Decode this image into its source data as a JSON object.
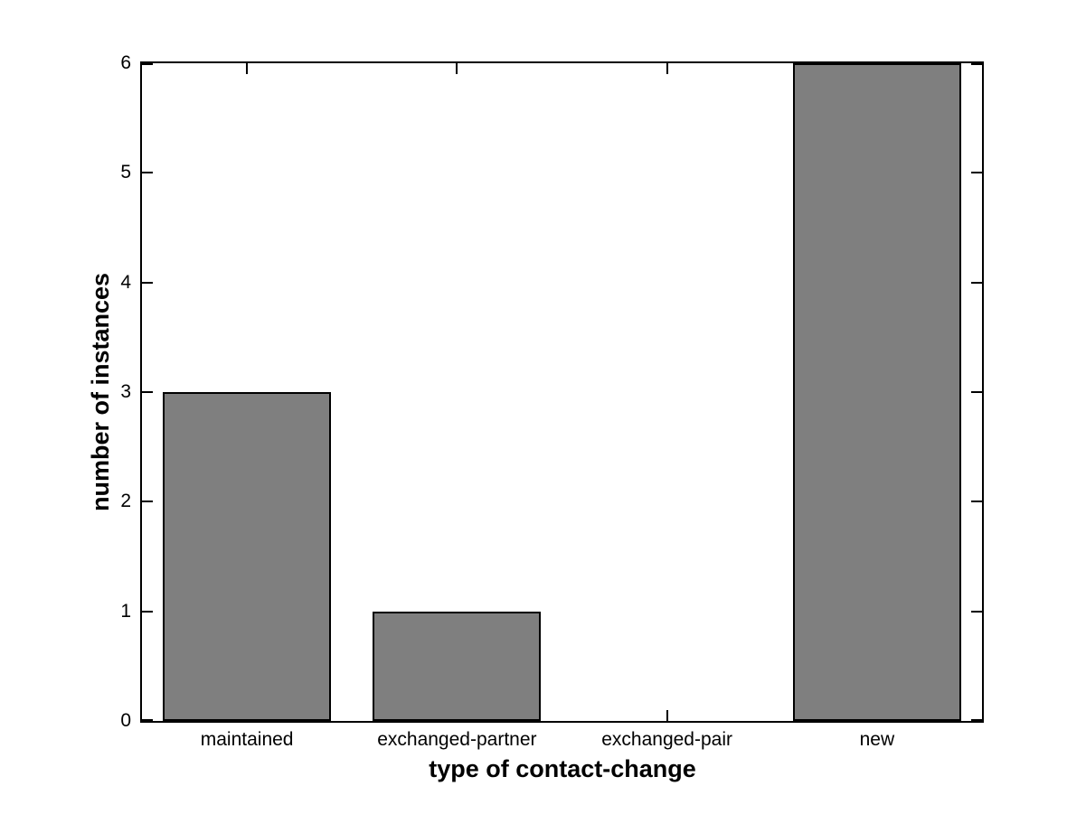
{
  "chart_data": {
    "type": "bar",
    "title": "",
    "xlabel": "type of contact-change",
    "ylabel": "number of instances",
    "categories": [
      "maintained",
      "exchanged-partner",
      "exchanged-pair",
      "new"
    ],
    "values": [
      3,
      1,
      0,
      6
    ],
    "ylim": [
      0,
      6
    ],
    "yticks": [
      0,
      1,
      2,
      3,
      4,
      5,
      6
    ],
    "bar_width_fraction": 0.8,
    "bar_color": "#7f7f7f",
    "bar_edge_color": "#000000",
    "axis_color": "#000000",
    "grid": false,
    "legend": null
  }
}
